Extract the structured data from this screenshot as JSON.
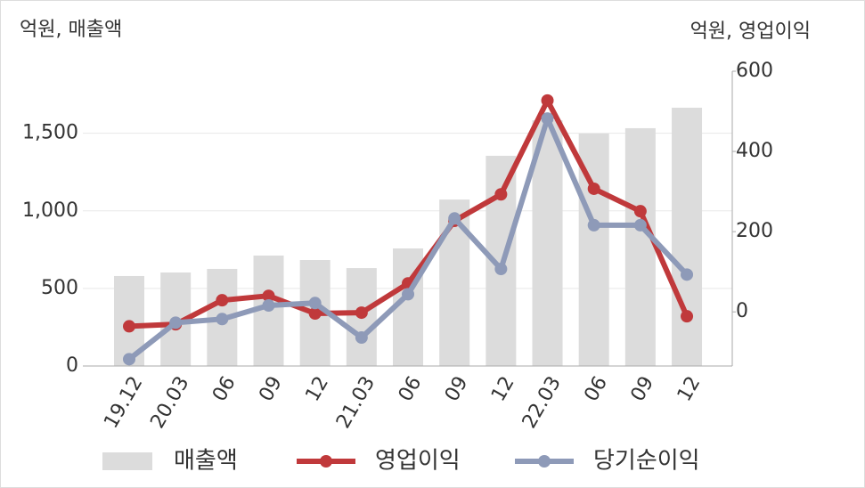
{
  "chart_data": {
    "type": "bar-line",
    "y_axis_label": "억원, 매출액",
    "y2_axis_label": "억원, 영업이익",
    "categories": [
      "19.12",
      "20.03",
      "06",
      "09",
      "12",
      "21.03",
      "06",
      "09",
      "12",
      "22.03",
      "06",
      "09",
      "12"
    ],
    "series": [
      {
        "name": "매출액",
        "type": "bar",
        "color": "#dcdcdc",
        "values": [
          580,
          603,
          626,
          712,
          683,
          631,
          758,
          1073,
          1355,
          1584,
          1498,
          1533,
          1665
        ]
      },
      {
        "name": "영업이익",
        "type": "line",
        "axis": "y2",
        "color": "#c0393b",
        "values": [
          -36,
          -31,
          29,
          40,
          -4,
          -2,
          71,
          227,
          293,
          527,
          307,
          251,
          -11
        ]
      },
      {
        "name": "당기순이익",
        "type": "line",
        "axis": "y2",
        "color": "#8e9ab8",
        "values": [
          -118,
          -27,
          -18,
          16,
          22,
          -64,
          44,
          233,
          107,
          482,
          216,
          216,
          93
        ]
      }
    ],
    "ylim": [
      0,
      1900
    ],
    "yticks": [
      0,
      500,
      {
        "value": 1000,
        "label": "1,000"
      },
      {
        "value": 1500,
        "label": "1,500"
      }
    ],
    "y2lim": [
      -135,
      600
    ],
    "y2ticks": [
      0,
      200,
      400,
      600
    ],
    "grid": true,
    "legend": "bottom"
  }
}
